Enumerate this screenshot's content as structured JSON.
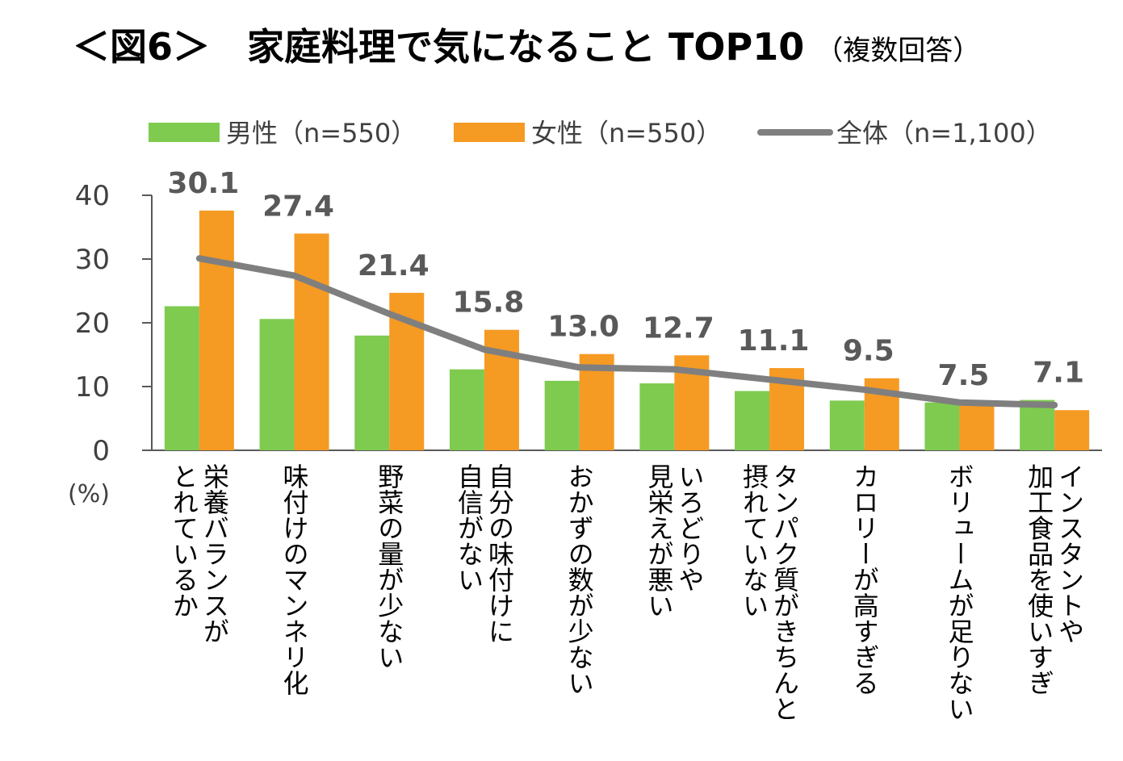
{
  "title": "＜図6＞　家庭料理で気になること TOP10",
  "subtitle": "（複数回答）",
  "colors": {
    "male": "#7ecb4f",
    "female": "#f59a23",
    "overall": "#7f7f7f",
    "axis": "#595959",
    "text": "#404040"
  },
  "chart_data": {
    "type": "bar",
    "title": "＜図6＞　家庭料理で気になること TOP10",
    "ylabel": "(%)",
    "ylim": [
      0,
      40
    ],
    "yticks": [
      0,
      10,
      20,
      30,
      40
    ],
    "categories": [
      [
        "栄養バランスが",
        "とれているか"
      ],
      [
        "味付けのマンネリ化"
      ],
      [
        "野菜の量が少ない"
      ],
      [
        "自分の味付けに",
        "自信がない"
      ],
      [
        "おかずの数が少ない"
      ],
      [
        "いろどりや",
        "見栄えが悪い"
      ],
      [
        "タンパク質がきちんと",
        "摂れていない"
      ],
      [
        "カロリーが高すぎる"
      ],
      [
        "ボリュームが足りない"
      ],
      [
        "インスタントや",
        "加工食品を使いすぎ"
      ]
    ],
    "series": [
      {
        "name": "男性（n=550）",
        "type": "bar",
        "values": [
          22.6,
          20.6,
          18.0,
          12.7,
          10.9,
          10.5,
          9.3,
          7.8,
          7.5,
          7.9
        ]
      },
      {
        "name": "女性（n=550）",
        "type": "bar",
        "values": [
          37.6,
          34.0,
          24.7,
          18.9,
          15.1,
          14.9,
          12.9,
          11.3,
          7.5,
          6.3
        ]
      },
      {
        "name": "全体（n=1,100）",
        "type": "line",
        "values": [
          30.1,
          27.4,
          21.4,
          15.8,
          13.0,
          12.7,
          11.1,
          9.5,
          7.5,
          7.1
        ]
      }
    ],
    "data_labels": [
      "30.1",
      "27.4",
      "21.4",
      "15.8",
      "13.0",
      "12.7",
      "11.1",
      "9.5",
      "7.5",
      "7.1"
    ],
    "legend": "top"
  }
}
